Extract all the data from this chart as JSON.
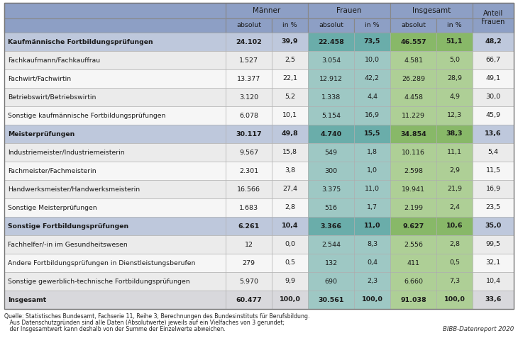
{
  "rows": [
    {
      "label": "Kaufmännische Fortbildungsprüfungen",
      "bold": true,
      "type": "group",
      "m_abs": "24.102",
      "m_pct": "39,9",
      "f_abs": "22.458",
      "f_pct": "73,5",
      "t_abs": "46.557",
      "t_pct": "51,1",
      "anteil": "48,2"
    },
    {
      "label": "Fachkaufmann/Fachkauffrau",
      "bold": false,
      "type": "sub",
      "m_abs": "1.527",
      "m_pct": "2,5",
      "f_abs": "3.054",
      "f_pct": "10,0",
      "t_abs": "4.581",
      "t_pct": "5,0",
      "anteil": "66,7"
    },
    {
      "label": "Fachwirt/Fachwirtin",
      "bold": false,
      "type": "sub",
      "m_abs": "13.377",
      "m_pct": "22,1",
      "f_abs": "12.912",
      "f_pct": "42,2",
      "t_abs": "26.289",
      "t_pct": "28,9",
      "anteil": "49,1"
    },
    {
      "label": "Betriebswirt/Betriebswirtin",
      "bold": false,
      "type": "sub",
      "m_abs": "3.120",
      "m_pct": "5,2",
      "f_abs": "1.338",
      "f_pct": "4,4",
      "t_abs": "4.458",
      "t_pct": "4,9",
      "anteil": "30,0"
    },
    {
      "label": "Sonstige kaufmännische Fortbildungsprüfungen",
      "bold": false,
      "type": "sub",
      "m_abs": "6.078",
      "m_pct": "10,1",
      "f_abs": "5.154",
      "f_pct": "16,9",
      "t_abs": "11.229",
      "t_pct": "12,3",
      "anteil": "45,9"
    },
    {
      "label": "Meisterprüfungen",
      "bold": true,
      "type": "group",
      "m_abs": "30.117",
      "m_pct": "49,8",
      "f_abs": "4.740",
      "f_pct": "15,5",
      "t_abs": "34.854",
      "t_pct": "38,3",
      "anteil": "13,6"
    },
    {
      "label": "Industriemeister/Industriemeisterin",
      "bold": false,
      "type": "sub",
      "m_abs": "9.567",
      "m_pct": "15,8",
      "f_abs": "549",
      "f_pct": "1,8",
      "t_abs": "10.116",
      "t_pct": "11,1",
      "anteil": "5,4"
    },
    {
      "label": "Fachmeister/Fachmeisterin",
      "bold": false,
      "type": "sub",
      "m_abs": "2.301",
      "m_pct": "3,8",
      "f_abs": "300",
      "f_pct": "1,0",
      "t_abs": "2.598",
      "t_pct": "2,9",
      "anteil": "11,5"
    },
    {
      "label": "Handwerksmeister/Handwerksmeisterin",
      "bold": false,
      "type": "sub",
      "m_abs": "16.566",
      "m_pct": "27,4",
      "f_abs": "3.375",
      "f_pct": "11,0",
      "t_abs": "19.941",
      "t_pct": "21,9",
      "anteil": "16,9"
    },
    {
      "label": "Sonstige Meisterprüfungen",
      "bold": false,
      "type": "sub",
      "m_abs": "1.683",
      "m_pct": "2,8",
      "f_abs": "516",
      "f_pct": "1,7",
      "t_abs": "2.199",
      "t_pct": "2,4",
      "anteil": "23,5"
    },
    {
      "label": "Sonstige Fortbildungsprüfungen",
      "bold": true,
      "type": "group",
      "m_abs": "6.261",
      "m_pct": "10,4",
      "f_abs": "3.366",
      "f_pct": "11,0",
      "t_abs": "9.627",
      "t_pct": "10,6",
      "anteil": "35,0"
    },
    {
      "label": "Fachhelfer/-in im Gesundheitswesen",
      "bold": false,
      "type": "sub",
      "m_abs": "12",
      "m_pct": "0,0",
      "f_abs": "2.544",
      "f_pct": "8,3",
      "t_abs": "2.556",
      "t_pct": "2,8",
      "anteil": "99,5"
    },
    {
      "label": "Andere Fortbildungsprüfungen in Dienstleistungsberufen",
      "bold": false,
      "type": "sub",
      "m_abs": "279",
      "m_pct": "0,5",
      "f_abs": "132",
      "f_pct": "0,4",
      "t_abs": "411",
      "t_pct": "0,5",
      "anteil": "32,1"
    },
    {
      "label": "Sonstige gewerblich-technische Fortbildungsprüfungen",
      "bold": false,
      "type": "sub",
      "m_abs": "5.970",
      "m_pct": "9,9",
      "f_abs": "690",
      "f_pct": "2,3",
      "t_abs": "6.660",
      "t_pct": "7,3",
      "anteil": "10,4"
    },
    {
      "label": "Insgesamt",
      "bold": true,
      "type": "total",
      "m_abs": "60.477",
      "m_pct": "100,0",
      "f_abs": "30.561",
      "f_pct": "100,0",
      "t_abs": "91.038",
      "t_pct": "100,0",
      "anteil": "33,6"
    }
  ],
  "footnote_line1": "Quelle: Statistisches Bundesamt, Fachserie 11, Reihe 3; Berechnungen des Bundesinstituts für Berufsbildung.",
  "footnote_line2": "   Aus Datenschutzgründen sind alle Daten (Absolutwerte) jeweils auf ein Vielfaches von 3 gerundet;",
  "footnote_line3": "   der Insgesamtwert kann deshalb von der Summe der Einzelwerte abweichen.",
  "bibb_label": "BIBB-Datenreport 2020",
  "col_header1": [
    "Männer",
    "Frauen",
    "Insgesamt"
  ],
  "col_header2": [
    "absolut",
    "in %",
    "absolut",
    "in %",
    "absolut",
    "in %"
  ],
  "anteil_header": "Anteil\nFrauen",
  "color_header_bg": "#8d9fc5",
  "color_frauen_normal": "#9ec8c4",
  "color_frauen_group": "#6aadaa",
  "color_insgesamt_normal": "#aecf96",
  "color_insgesamt_group": "#88b868",
  "color_group_label_bg": "#bec8dc",
  "color_sub_bg": "#e8e8ec",
  "color_sub_bg2": "#f4f4f4",
  "color_total_bg": "#d8d8dc",
  "color_maenner_group": "#bec8dc",
  "color_anteil_group": "#bec8dc",
  "color_anteil_total": "#d8d8dc"
}
